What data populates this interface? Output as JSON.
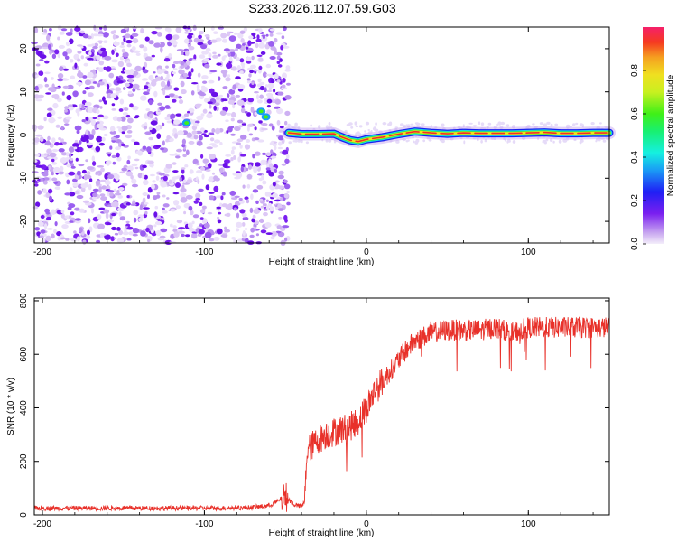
{
  "title": "S233.2026.112.07.59.G03",
  "chart_data": [
    {
      "type": "heatmap",
      "name": "spectrogram",
      "xlabel": "Height of straight line (km)",
      "ylabel": "Frequency (Hz)",
      "xlim": [
        -205,
        150
      ],
      "ylim": [
        -25,
        25
      ],
      "xticks": [
        -200,
        -100,
        0,
        100
      ],
      "yticks": [
        -20,
        -10,
        0,
        10,
        20
      ],
      "noise_region_x": [
        -205,
        -48
      ],
      "signal_track": {
        "x": [
          -48,
          -40,
          -30,
          -20,
          -15,
          -10,
          -5,
          0,
          10,
          20,
          30,
          40,
          50,
          60,
          70,
          80,
          90,
          100,
          110,
          120,
          130,
          140,
          150
        ],
        "frequency": [
          0.5,
          0.2,
          0.2,
          0.3,
          -0.5,
          -1.2,
          -1.5,
          -1.0,
          -0.5,
          0.2,
          0.8,
          0.5,
          0.3,
          0.5,
          0.4,
          0.4,
          0.4,
          0.5,
          0.6,
          0.4,
          0.4,
          0.5,
          0.5
        ]
      },
      "colorbar": {
        "label": "Normalized spectral amplitude",
        "range": [
          0,
          1
        ],
        "ticks": [
          "0.0",
          "0.2",
          "0.4",
          "0.6",
          "0.8"
        ],
        "tick_values": [
          0,
          0.2,
          0.4,
          0.6,
          0.8
        ]
      }
    },
    {
      "type": "line",
      "name": "snr",
      "xlabel": "Height of straight line (km)",
      "ylabel": "SNR (10 * v/v)",
      "xlim": [
        -205,
        150
      ],
      "ylim": [
        0,
        810
      ],
      "xticks": [
        -200,
        -100,
        0,
        100
      ],
      "yticks": [
        0,
        200,
        400,
        600,
        800
      ],
      "color": "#e8312a",
      "x": [
        -205,
        -180,
        -150,
        -120,
        -90,
        -70,
        -60,
        -55,
        -50,
        -45,
        -40,
        -38,
        -37,
        -35,
        -30,
        -25,
        -20,
        -15,
        -10,
        -5,
        0,
        5,
        10,
        15,
        20,
        25,
        30,
        40,
        50,
        60,
        70,
        80,
        90,
        100,
        110,
        120,
        130,
        140,
        150
      ],
      "y": [
        25,
        25,
        25,
        25,
        25,
        28,
        35,
        50,
        70,
        40,
        30,
        50,
        220,
        250,
        280,
        300,
        310,
        320,
        330,
        350,
        400,
        460,
        500,
        540,
        580,
        620,
        650,
        680,
        690,
        690,
        690,
        700,
        680,
        700,
        700,
        700,
        700,
        700,
        700
      ]
    }
  ]
}
